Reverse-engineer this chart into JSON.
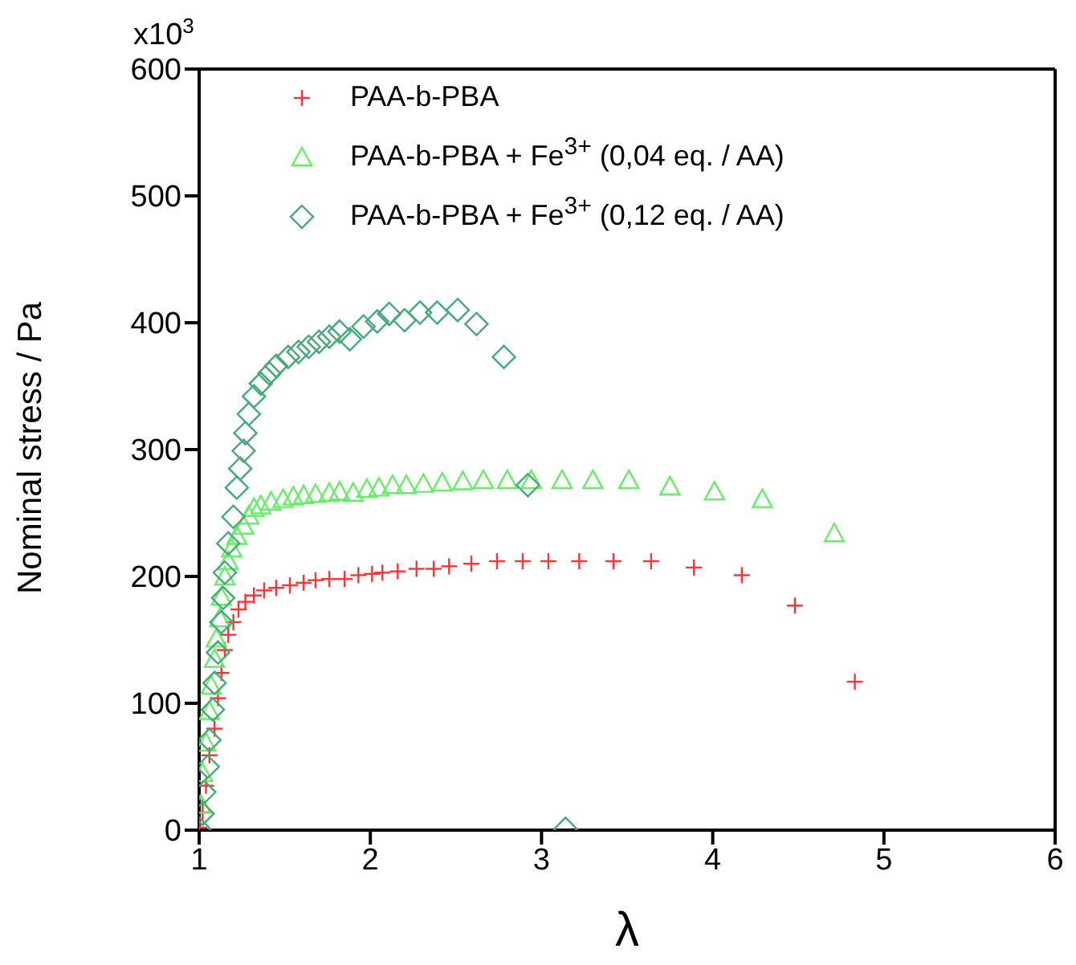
{
  "chart_data": {
    "type": "scatter",
    "xlabel": "λ",
    "ylabel": "Nominal stress / Pa",
    "annotations": [
      "x10$^{3}$"
    ],
    "xlim": [
      1,
      6
    ],
    "xticks": [
      1,
      2,
      3,
      4,
      5,
      6
    ],
    "ylim": [
      0,
      600
    ],
    "yticks": [
      0,
      100,
      200,
      300,
      400,
      500,
      600
    ],
    "legend": "top left",
    "series": [
      {
        "name": "PAA-b-PBA",
        "color": "#ff3333",
        "marker": "cross",
        "x": [
          1.0,
          1.02,
          1.04,
          1.06,
          1.09,
          1.11,
          1.13,
          1.15,
          1.17,
          1.2,
          1.23,
          1.27,
          1.32,
          1.38,
          1.45,
          1.53,
          1.61,
          1.68,
          1.76,
          1.85,
          1.93,
          2.01,
          2.07,
          2.16,
          2.27,
          2.37,
          2.46,
          2.59,
          2.74,
          2.89,
          3.04,
          3.22,
          3.42,
          3.64,
          3.89,
          4.17,
          4.48,
          4.83
        ],
        "values": [
          2,
          14,
          35,
          59,
          80,
          104,
          124,
          142,
          154,
          164,
          174,
          180,
          185,
          189,
          191,
          193,
          195,
          197,
          198,
          198,
          201,
          202,
          203,
          204,
          206,
          206,
          208,
          210,
          212,
          212,
          212,
          212,
          212,
          212,
          207,
          201,
          177,
          117
        ]
      },
      {
        "name": "PAA-b-PBA + Fe$^{3+}$ (0,04 eq. / AA)",
        "color": "#66ee66",
        "marker": "triangle",
        "x": [
          1.01,
          1.02,
          1.04,
          1.06,
          1.07,
          1.09,
          1.1,
          1.12,
          1.13,
          1.15,
          1.17,
          1.19,
          1.22,
          1.26,
          1.29,
          1.32,
          1.36,
          1.42,
          1.49,
          1.55,
          1.61,
          1.68,
          1.76,
          1.82,
          1.9,
          1.98,
          2.05,
          2.13,
          2.21,
          2.31,
          2.42,
          2.54,
          2.66,
          2.8,
          2.94,
          3.12,
          3.3,
          3.51,
          3.75,
          4.01,
          4.29,
          4.71
        ],
        "values": [
          20,
          45,
          69,
          94,
          114,
          135,
          151,
          167,
          184,
          200,
          212,
          222,
          232,
          240,
          248,
          254,
          256,
          259,
          261,
          263,
          264,
          265,
          266,
          267,
          266,
          269,
          270,
          272,
          272,
          273,
          274,
          275,
          276,
          276,
          276,
          276,
          276,
          276,
          271,
          267,
          261,
          234
        ]
      },
      {
        "name": "PAA-b-PBA + Fe$^{3+}$ (0,12 eq. / AA)",
        "color": "#44aa77",
        "marker": "diamond",
        "x": [
          1.0,
          1.02,
          1.03,
          1.05,
          1.06,
          1.08,
          1.09,
          1.11,
          1.13,
          1.14,
          1.15,
          1.17,
          1.2,
          1.22,
          1.24,
          1.26,
          1.27,
          1.29,
          1.32,
          1.36,
          1.41,
          1.45,
          1.52,
          1.58,
          1.64,
          1.7,
          1.76,
          1.82,
          1.88,
          1.96,
          2.04,
          2.11,
          2.2,
          2.29,
          2.39,
          2.51,
          2.62,
          2.78,
          2.92,
          3.14
        ],
        "values": [
          1,
          13,
          30,
          50,
          71,
          95,
          116,
          140,
          164,
          183,
          203,
          226,
          247,
          270,
          285,
          299,
          313,
          328,
          342,
          352,
          360,
          366,
          373,
          377,
          381,
          385,
          389,
          393,
          387,
          397,
          401,
          407,
          402,
          408,
          408,
          410,
          399,
          373,
          272,
          1
        ]
      }
    ]
  }
}
